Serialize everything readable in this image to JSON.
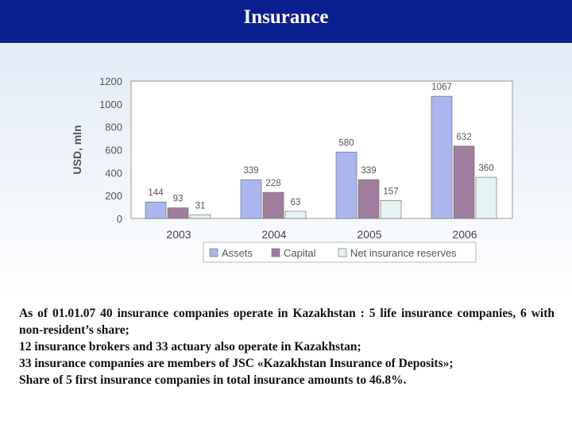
{
  "header": {
    "title": "Insurance"
  },
  "colors": {
    "header_bg": "#0a1f8f",
    "assets": "#a9b6f0",
    "capital": "#9e7d9e",
    "reserves": "#e6f3f3"
  },
  "chart_data": {
    "type": "bar",
    "ylabel": "USD, mln",
    "ylim": [
      0,
      1200
    ],
    "yticks": [
      "0",
      "200",
      "400",
      "600",
      "800",
      "1000",
      "1200"
    ],
    "categories": [
      "2003",
      "2004",
      "2005",
      "2006"
    ],
    "series": [
      {
        "name": "Assets",
        "values": [
          144,
          339,
          580,
          1067
        ]
      },
      {
        "name": "Capital",
        "values": [
          93,
          228,
          339,
          632
        ]
      },
      {
        "name": "Net insurance reserves",
        "values": [
          31,
          63,
          157,
          360
        ]
      }
    ],
    "legend_position": "bottom",
    "grid": false
  },
  "text": {
    "p1": "As of 01.01.07 40 insurance companies operate in Kazakhstan : 5 life insurance companies, 6 with non-resident’s share;",
    "p2": "12 insurance brokers and 33 actuary also operate in Kazakhstan;",
    "p3": "33 insurance companies are members of JSC «Kazakhstan Insurance of Deposits»;",
    "p4": "Share of 5 first insurance companies in total insurance amounts to 46.8%."
  }
}
